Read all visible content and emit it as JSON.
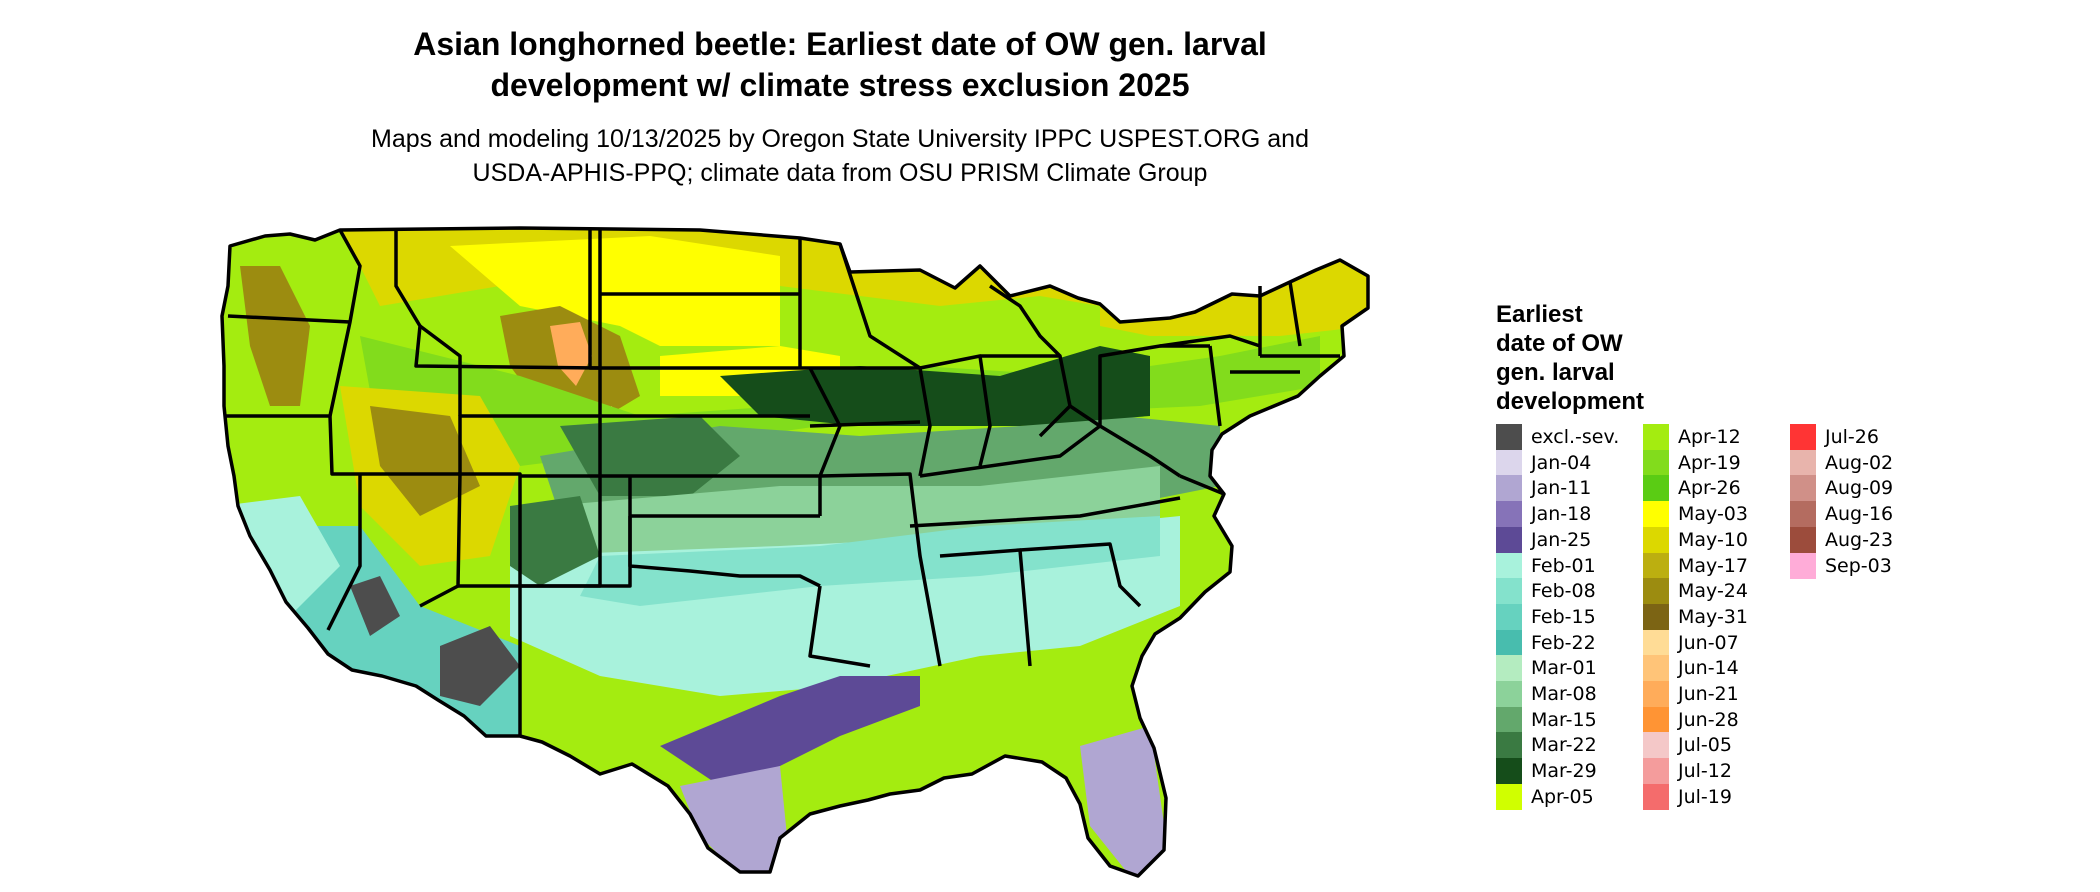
{
  "title": {
    "line1": "Asian longhorned beetle: Earliest date of OW gen. larval",
    "line2": "development w/ climate stress exclusion 2025"
  },
  "subtitle": {
    "line1": "Maps and modeling 10/13/2025 by Oregon State University IPPC USPEST.ORG and",
    "line2": "USDA-APHIS-PPQ; climate data from OSU PRISM Climate Group"
  },
  "legend": {
    "title_lines": [
      "Earliest",
      "date of OW",
      "gen. larval",
      "development"
    ],
    "items": [
      {
        "label": "excl.-sev.",
        "color": "#4d4d4d"
      },
      {
        "label": "Jan-04",
        "color": "#dcd6ec"
      },
      {
        "label": "Jan-11",
        "color": "#b0a6d2"
      },
      {
        "label": "Jan-18",
        "color": "#8673b8"
      },
      {
        "label": "Jan-25",
        "color": "#5d4a96"
      },
      {
        "label": "Feb-01",
        "color": "#a8f2dc"
      },
      {
        "label": "Feb-08",
        "color": "#84e2cc"
      },
      {
        "label": "Feb-15",
        "color": "#66d2bf"
      },
      {
        "label": "Feb-22",
        "color": "#48bdae"
      },
      {
        "label": "Mar-01",
        "color": "#b4ecc0"
      },
      {
        "label": "Mar-08",
        "color": "#8cd29a"
      },
      {
        "label": "Mar-15",
        "color": "#63a86c"
      },
      {
        "label": "Mar-22",
        "color": "#3a7a42"
      },
      {
        "label": "Mar-29",
        "color": "#154d1a"
      },
      {
        "label": "Apr-05",
        "color": "#d0ff00"
      },
      {
        "label": "Apr-12",
        "color": "#a4ec10"
      },
      {
        "label": "Apr-19",
        "color": "#82dc1c"
      },
      {
        "label": "Apr-26",
        "color": "#5acc14"
      },
      {
        "label": "May-03",
        "color": "#ffff00"
      },
      {
        "label": "May-10",
        "color": "#dcd800"
      },
      {
        "label": "May-17",
        "color": "#bcaf10"
      },
      {
        "label": "May-24",
        "color": "#9c8c10"
      },
      {
        "label": "May-31",
        "color": "#7c6414"
      },
      {
        "label": "Jun-07",
        "color": "#ffdc96"
      },
      {
        "label": "Jun-14",
        "color": "#ffc478"
      },
      {
        "label": "Jun-21",
        "color": "#ffac5a"
      },
      {
        "label": "Jun-28",
        "color": "#ff9434"
      },
      {
        "label": "Jul-05",
        "color": "#f4c8c8"
      },
      {
        "label": "Jul-12",
        "color": "#f49c9c"
      },
      {
        "label": "Jul-19",
        "color": "#f46c6c"
      },
      {
        "label": "Jul-26",
        "color": "#ff3434"
      },
      {
        "label": "Aug-02",
        "color": "#e8b4ac"
      },
      {
        "label": "Aug-09",
        "color": "#d09088"
      },
      {
        "label": "Aug-16",
        "color": "#b46c60"
      },
      {
        "label": "Aug-23",
        "color": "#9c4c3c"
      },
      {
        "label": "Sep-03",
        "color": "#ffacd8"
      }
    ]
  },
  "map": {
    "border_color": "#000000",
    "regions": [
      {
        "label": "Jan-11",
        "color": "#b0a6d2"
      },
      {
        "label": "Jan-25",
        "color": "#5d4a96"
      },
      {
        "label": "Feb-01",
        "color": "#a8f2dc"
      },
      {
        "label": "Feb-08",
        "color": "#84e2cc"
      },
      {
        "label": "Feb-15",
        "color": "#66d2bf"
      },
      {
        "label": "Mar-08",
        "color": "#8cd29a"
      },
      {
        "label": "Mar-15",
        "color": "#63a86c"
      },
      {
        "label": "Mar-22",
        "color": "#3a7a42"
      },
      {
        "label": "Mar-29",
        "color": "#154d1a"
      },
      {
        "label": "Apr-12",
        "color": "#a4ec10"
      },
      {
        "label": "Apr-19",
        "color": "#82dc1c"
      },
      {
        "label": "May-03",
        "color": "#ffff00"
      },
      {
        "label": "May-10",
        "color": "#dcd800"
      },
      {
        "label": "May-24",
        "color": "#9c8c10"
      },
      {
        "label": "Jun-21",
        "color": "#ffac5a"
      },
      {
        "label": "excl.-sev.",
        "color": "#4d4d4d"
      }
    ]
  }
}
